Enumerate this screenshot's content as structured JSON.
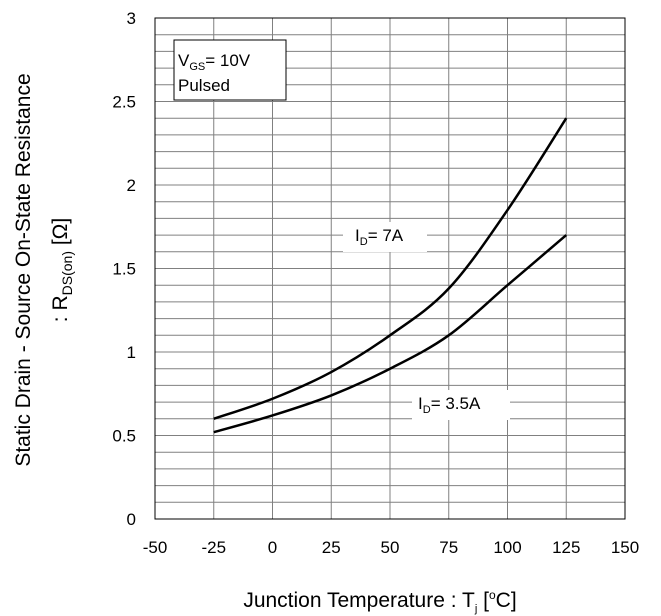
{
  "chart_data": {
    "type": "line",
    "title": "",
    "xlabel": {
      "main": "Junction Temperature : T",
      "sub": "j",
      "unit_open": " [",
      "unit_deg": "o",
      "unit_close": "C]"
    },
    "ylabel": {
      "line1": "Static Drain - Source On-State Resistance",
      "line2_main": ": R",
      "line2_sub": "DS(on)",
      "line2_unit": " [Ω]"
    },
    "xlim": [
      -50,
      150
    ],
    "ylim": [
      0,
      3
    ],
    "x_ticks": [
      "-50",
      "-25",
      "0",
      "25",
      "50",
      "75",
      "100",
      "125",
      "150"
    ],
    "y_ticks": [
      "0",
      "0.5",
      "1",
      "1.5",
      "2",
      "2.5",
      "3"
    ],
    "x_tick_values": [
      -50,
      -25,
      0,
      25,
      50,
      75,
      100,
      125,
      150
    ],
    "y_tick_values": [
      0,
      0.5,
      1,
      1.5,
      2,
      2.5,
      3
    ],
    "grid": {
      "vertical_step": 25,
      "horizontal_step": 0.1
    },
    "conditions": {
      "line1_main": "V",
      "line1_sub": "GS",
      "line1_rest": "= 10V",
      "line2": "Pulsed"
    },
    "series": [
      {
        "name": "ID = 7A",
        "label_main": "I",
        "label_sub": "D",
        "label_rest": "= 7A",
        "color": "#000000",
        "x": [
          -25,
          0,
          25,
          50,
          75,
          100,
          125
        ],
        "y": [
          0.6,
          0.72,
          0.88,
          1.1,
          1.38,
          1.85,
          2.4
        ]
      },
      {
        "name": "ID = 3.5A",
        "label_main": "I",
        "label_sub": "D",
        "label_rest": "= 3.5A",
        "color": "#000000",
        "x": [
          -25,
          0,
          25,
          50,
          75,
          100,
          125
        ],
        "y": [
          0.52,
          0.62,
          0.74,
          0.9,
          1.1,
          1.4,
          1.7
        ]
      }
    ]
  }
}
